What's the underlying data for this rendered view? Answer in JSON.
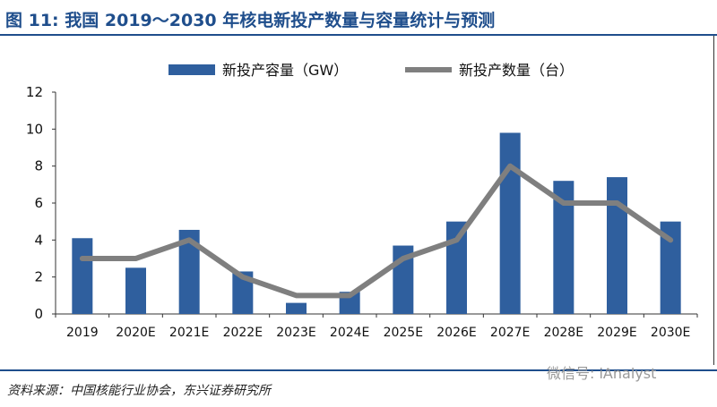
{
  "title": "图 11: 我国 2019～2030 年核电新投产数量与容量统计与预测",
  "source": "资料来源：中国核能行业协会，东兴证券研究所",
  "watermark": "微信号: iAnalyst",
  "colors": {
    "bar": "#2f5f9e",
    "line": "#7f7f7f",
    "title": "#1f4e8c"
  },
  "chart_data": {
    "type": "bar+line",
    "categories": [
      "2019",
      "2020E",
      "2021E",
      "2022E",
      "2023E",
      "2024E",
      "2025E",
      "2026E",
      "2027E",
      "2028E",
      "2029E",
      "2030E"
    ],
    "series": [
      {
        "name": "新投产容量（GW）",
        "type": "bar",
        "values": [
          4.1,
          2.5,
          4.55,
          2.3,
          0.6,
          1.2,
          3.7,
          5.0,
          9.8,
          7.2,
          7.4,
          5.0
        ]
      },
      {
        "name": "新投产数量（台）",
        "type": "line",
        "values": [
          3,
          3,
          4,
          2,
          1,
          1,
          3,
          4,
          8,
          6,
          6,
          4
        ]
      }
    ],
    "ylim": [
      0,
      12
    ],
    "yticks": [
      "0",
      "2",
      "4",
      "6",
      "8",
      "10",
      "12"
    ],
    "grid": false,
    "legend": "top"
  }
}
